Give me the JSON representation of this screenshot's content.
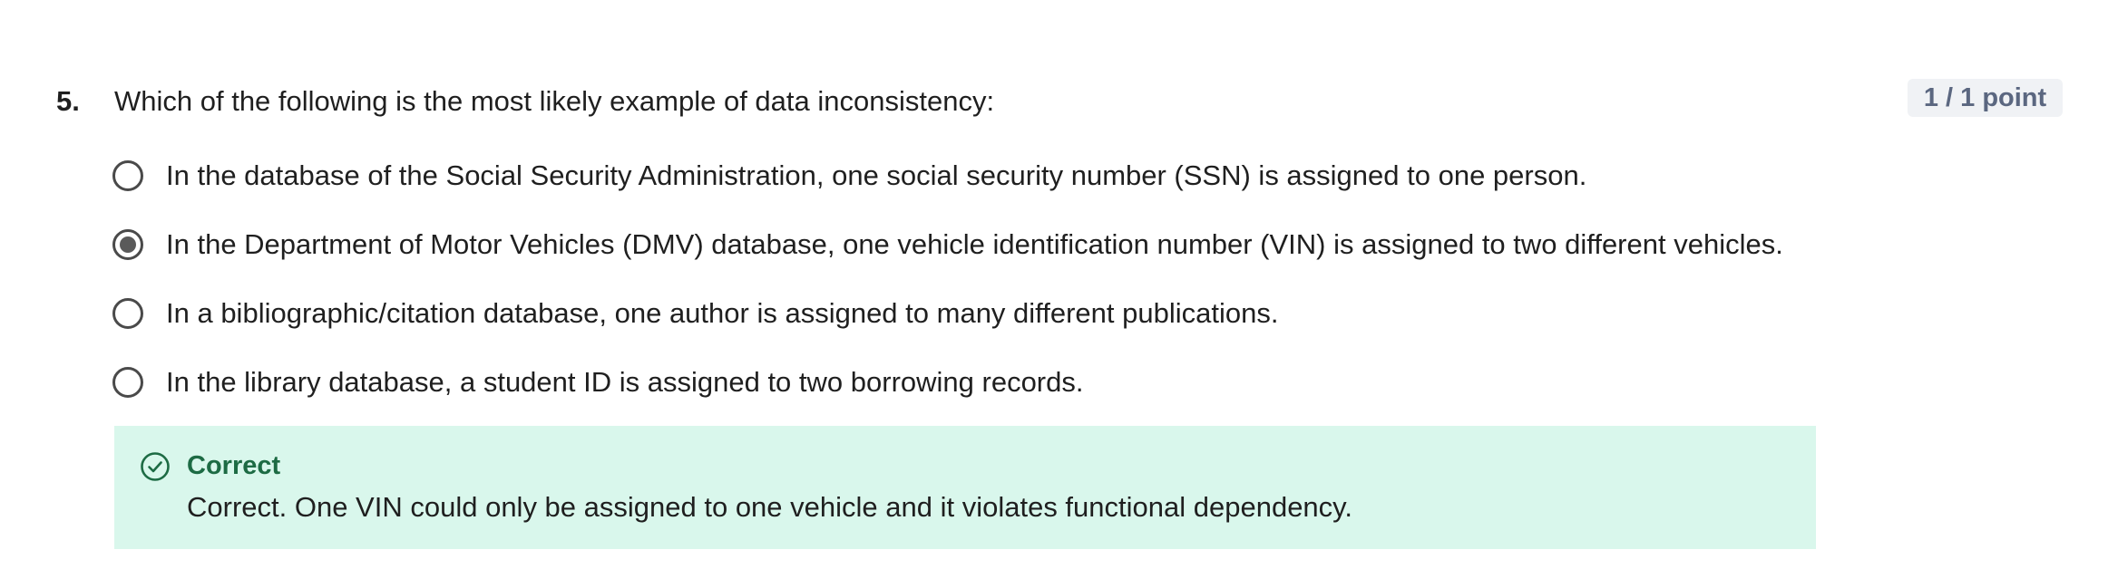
{
  "question": {
    "number": "5.",
    "text": "Which of the following is the most likely example of data inconsistency:",
    "points": "1 / 1 point",
    "options": [
      {
        "label": "In the database of the Social Security Administration, one social security number (SSN) is assigned to one person.",
        "selected": false
      },
      {
        "label": "In the Department of Motor Vehicles (DMV) database, one vehicle identification number (VIN) is assigned to two different vehicles.",
        "selected": true
      },
      {
        "label": "In a bibliographic/citation database, one author is assigned to many different publications.",
        "selected": false
      },
      {
        "label": "In the library database, a student ID is assigned to two borrowing records.",
        "selected": false
      }
    ]
  },
  "feedback": {
    "icon": "check-circle-icon",
    "title": "Correct",
    "text": "Correct. One VIN could only be assigned to one vehicle and it violates functional dependency.",
    "background_color": "#d9f7ec",
    "accent_color": "#1d6b44"
  }
}
